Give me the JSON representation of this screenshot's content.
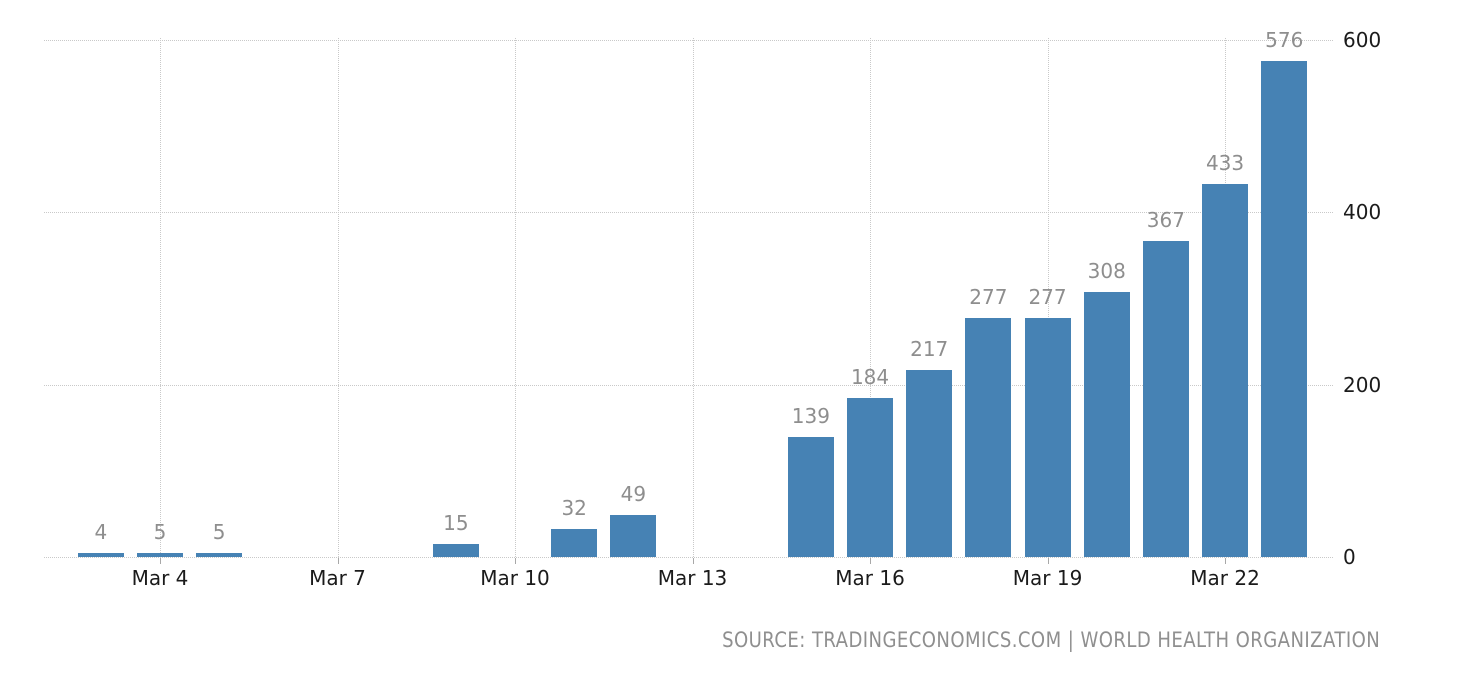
{
  "chart_data": {
    "type": "bar",
    "title": "",
    "xlabel": "",
    "ylabel": "",
    "categories": [
      "Mar 3",
      "Mar 4",
      "Mar 5",
      "Mar 9",
      "Mar 11",
      "Mar 12",
      "Mar 15",
      "Mar 16",
      "Mar 17",
      "Mar 18",
      "Mar 19",
      "Mar 20",
      "Mar 21",
      "Mar 22",
      "Mar 23"
    ],
    "values": [
      4,
      5,
      5,
      15,
      32,
      49,
      139,
      184,
      217,
      277,
      277,
      308,
      367,
      433,
      576
    ],
    "value_labels": [
      "4",
      "5",
      "5",
      "15",
      "32",
      "49",
      "139",
      "184",
      "217",
      "277",
      "277",
      "308",
      "367",
      "433",
      "576"
    ],
    "day_numbers": [
      3,
      4,
      5,
      9,
      11,
      12,
      15,
      16,
      17,
      18,
      19,
      20,
      21,
      22,
      23
    ],
    "x_ticks": [
      {
        "label": "Mar 4",
        "day": 4
      },
      {
        "label": "Mar 7",
        "day": 7
      },
      {
        "label": "Mar 10",
        "day": 10
      },
      {
        "label": "Mar 13",
        "day": 13
      },
      {
        "label": "Mar 16",
        "day": 16
      },
      {
        "label": "Mar 19",
        "day": 19
      },
      {
        "label": "Mar 22",
        "day": 22
      }
    ],
    "y_ticks": [
      0,
      200,
      400,
      600
    ],
    "ylim": [
      0,
      600
    ],
    "grid": true,
    "legend": "none",
    "y_axis_side": "right",
    "bar_color": "#4682b4",
    "value_label_color": "#8e8e8e",
    "tick_label_color": "#1b1b1b",
    "gridline_color": "#c9c9c9"
  },
  "footer": {
    "source_text": "SOURCE: TRADINGECONOMICS.COM | WORLD HEALTH ORGANIZATION"
  }
}
